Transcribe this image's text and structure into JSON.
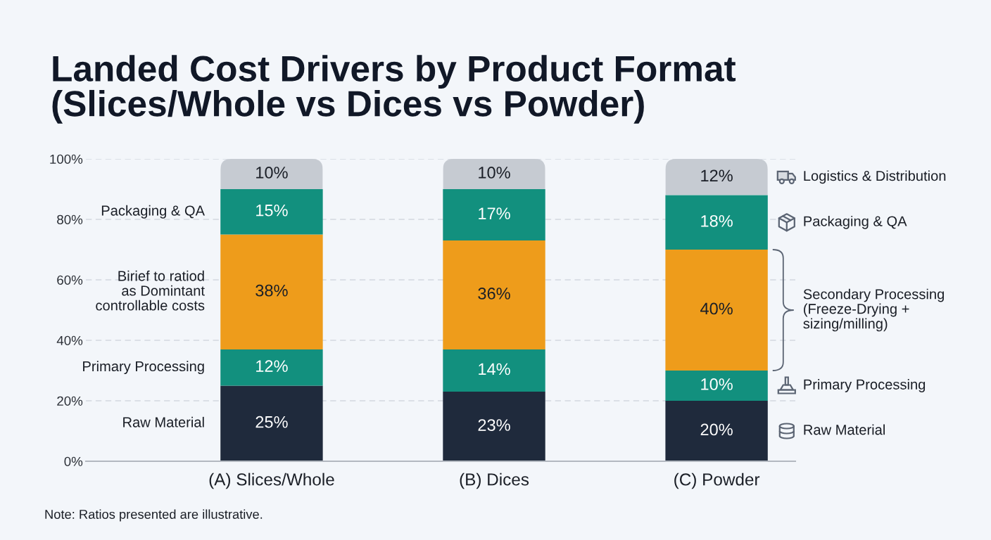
{
  "chart_data": {
    "type": "bar",
    "title": "Landed Cost Drivers by Product Format\n(Slices/Whole vs Dices vs Powder)",
    "categories": [
      "(A) Slices/Whole",
      "(B) Dices",
      "(C) Powder"
    ],
    "stacked": true,
    "series": [
      {
        "name": "Raw Material",
        "color": "#1f2a3c",
        "values": [
          25,
          23,
          20
        ],
        "value_labels": [
          "25%",
          "23%",
          "20%"
        ]
      },
      {
        "name": "Primary Processing",
        "color": "#12907e",
        "values": [
          12,
          14,
          10
        ],
        "value_labels": [
          "12%",
          "14%",
          "10%"
        ]
      },
      {
        "name": "Secondary Processing\n(Freeze-Drying +\nsizing/milling)",
        "color": "#ee9c1b",
        "values": [
          38,
          36,
          40
        ],
        "value_labels": [
          "38%",
          "36%",
          "40%"
        ]
      },
      {
        "name": "Packaging & QA",
        "color": "#12907e",
        "values": [
          15,
          17,
          18
        ],
        "value_labels": [
          "15%",
          "17%",
          "18%"
        ]
      },
      {
        "name": "Logistics & Distribution",
        "color": "#c6cbd2",
        "values": [
          10,
          10,
          12
        ],
        "value_labels": [
          "10%",
          "10%",
          "12%"
        ]
      }
    ],
    "ylim": [
      0,
      100
    ],
    "yticks": [
      {
        "value": 0,
        "label": "0%"
      },
      {
        "value": 20,
        "label": "20%"
      },
      {
        "value": 40,
        "label": "40%"
      },
      {
        "value": 60,
        "label": "60%"
      },
      {
        "value": 80,
        "label": "80%"
      },
      {
        "value": 100,
        "label": "100%"
      }
    ],
    "grid": "y",
    "legend": "right",
    "annotations": [
      "Packaging & QA",
      "Birief to ratiod\nas Domintant\ncontrollable costs",
      "Primary Processing",
      "Raw Material",
      "Note: Ratios presented are illustrative."
    ]
  }
}
